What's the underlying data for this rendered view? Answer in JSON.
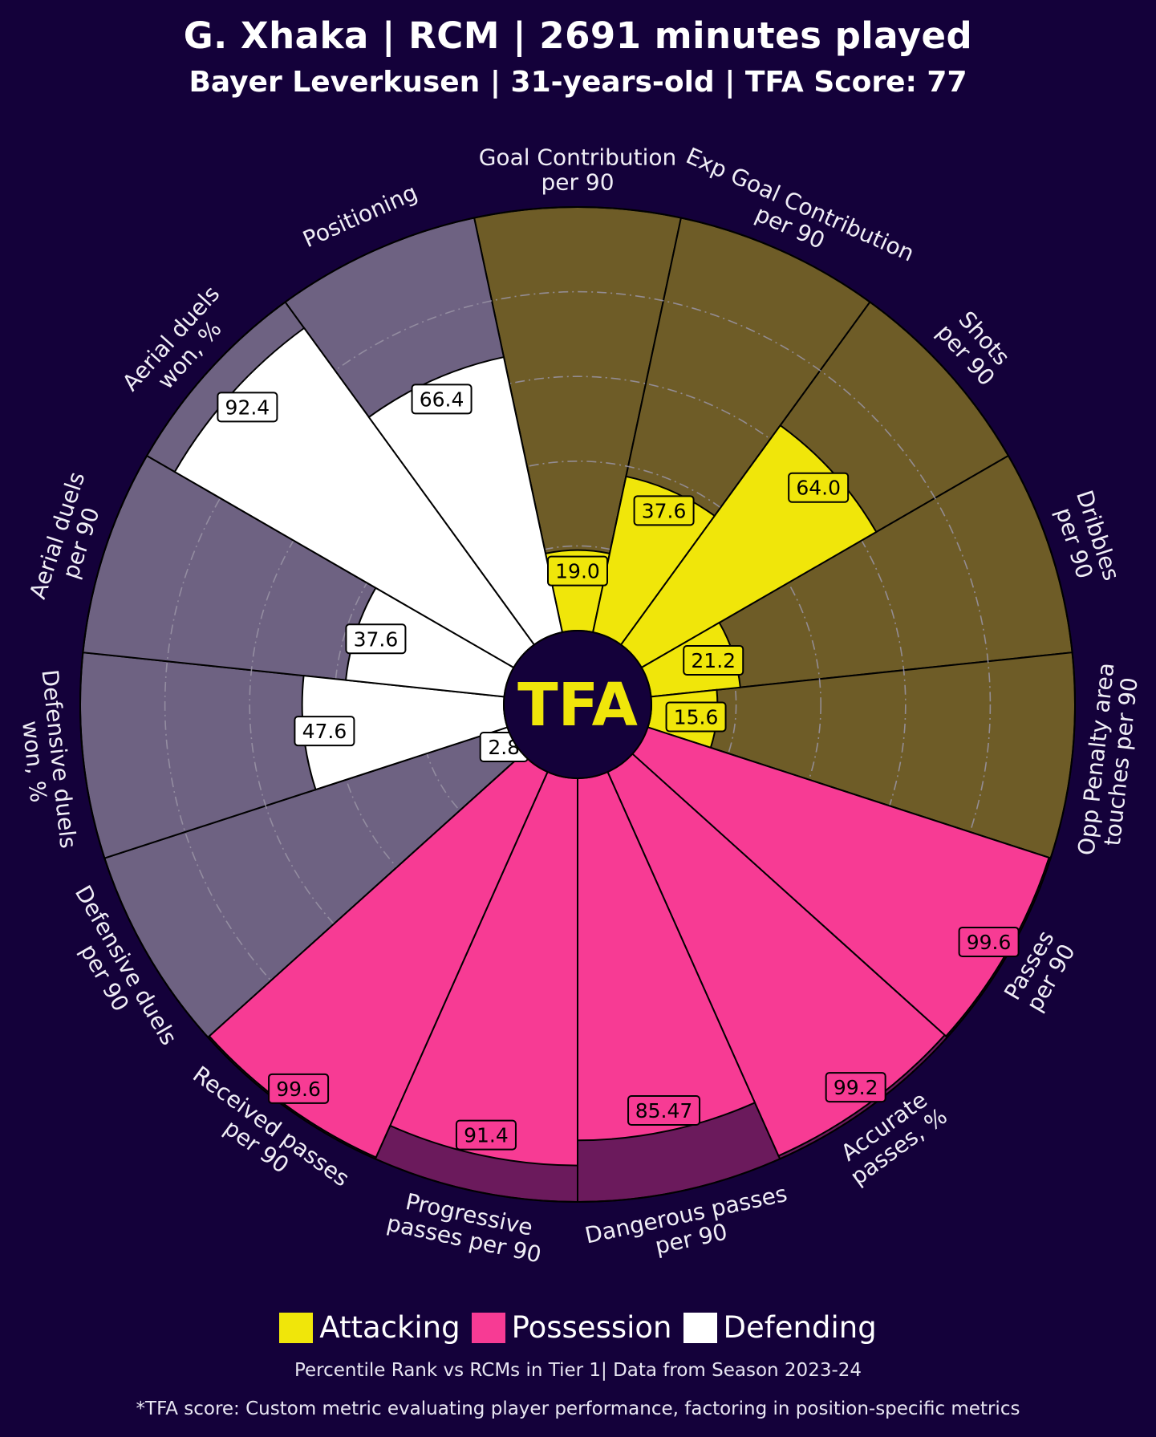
{
  "header": {
    "title": "G. Xhaka | RCM | 2691 minutes played",
    "subtitle": "Bayer Leverkusen | 31-years-old | TFA Score: 77"
  },
  "center_logo": "TFA",
  "legend": [
    {
      "label": "Attacking",
      "color": "#f0e60a"
    },
    {
      "label": "Possession",
      "color": "#f73b94"
    },
    {
      "label": "Defending",
      "color": "#ffffff"
    }
  ],
  "footer": {
    "note": "Percentile Rank vs RCMs in Tier 1| Data from Season 2023-24",
    "tfa_note": "*TFA score: Custom metric evaluating player performance, factoring in position-specific metrics"
  },
  "colors": {
    "background": "#14013a",
    "attacking": "#f0e60a",
    "attacking_bg": "#6e5c27",
    "possession": "#f73b94",
    "possession_bg": "#6b1a5c",
    "defending": "#ffffff",
    "defending_bg": "#6e6282"
  },
  "chart_data": {
    "type": "pizza",
    "title": "G. Xhaka | RCM | 2691 minutes played",
    "subtitle": "Bayer Leverkusen | 31-years-old | TFA Score: 77",
    "value_range": [
      0,
      100
    ],
    "metrics": [
      {
        "label": "Goal Contribution\nper 90",
        "value": 19.0,
        "display": "19.0",
        "group": "Attacking"
      },
      {
        "label": "Exp Goal Contribution\nper 90",
        "value": 37.6,
        "display": "37.6",
        "group": "Attacking"
      },
      {
        "label": "Shots\nper 90",
        "value": 64.0,
        "display": "64.0",
        "group": "Attacking"
      },
      {
        "label": "Dribbles\nper 90",
        "value": 21.2,
        "display": "21.2",
        "group": "Attacking"
      },
      {
        "label": "Opp Penalty area\ntouches per 90",
        "value": 15.6,
        "display": "15.6",
        "group": "Attacking"
      },
      {
        "label": "Passes\nper 90",
        "value": 99.6,
        "display": "99.6",
        "group": "Possession"
      },
      {
        "label": "Accurate\npasses, %",
        "value": 99.2,
        "display": "99.2",
        "group": "Possession"
      },
      {
        "label": "Dangerous passes\nper 90",
        "value": 85.47,
        "display": "85.47",
        "group": "Possession"
      },
      {
        "label": "Progressive\npasses per 90",
        "value": 91.4,
        "display": "91.4",
        "group": "Possession"
      },
      {
        "label": "Received passes\nper 90",
        "value": 99.6,
        "display": "99.6",
        "group": "Possession"
      },
      {
        "label": "Defensive duels\nper 90",
        "value": 2.8,
        "display": "2.8",
        "group": "Defending"
      },
      {
        "label": "Defensive duels\nwon, %",
        "value": 47.6,
        "display": "47.6",
        "group": "Defending"
      },
      {
        "label": "Aerial duels\nper 90",
        "value": 37.6,
        "display": "37.6",
        "group": "Defending"
      },
      {
        "label": "Aerial duels\nwon, %",
        "value": 92.4,
        "display": "92.4",
        "group": "Defending"
      },
      {
        "label": "Positioning",
        "value": 66.4,
        "display": "66.4",
        "group": "Defending"
      }
    ]
  }
}
